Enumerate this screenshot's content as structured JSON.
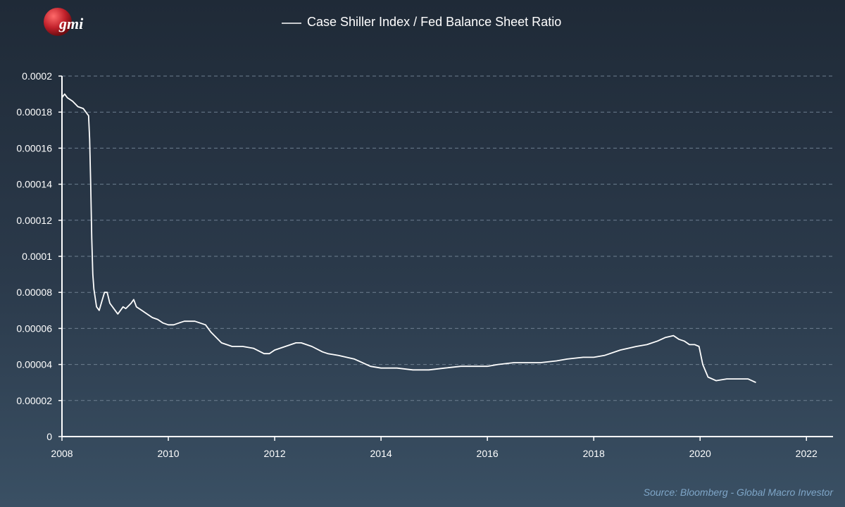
{
  "logo": {
    "text": "gmi",
    "color": "#c0202a"
  },
  "source_note": "Source: Bloomberg - Global Macro Investor",
  "colors": {
    "line": "#ffffff",
    "grid": "#6e7f90",
    "axis": "#ffffff",
    "text": "#ffffff",
    "source": "#7fa6c8"
  },
  "chart_data": {
    "type": "line",
    "title": "",
    "xlabel": "",
    "ylabel": "",
    "grid": true,
    "legend": "top-center",
    "xlim": [
      2008,
      2022.5
    ],
    "ylim": [
      0,
      0.0002
    ],
    "xticks": [
      "2008",
      "2010",
      "2012",
      "2014",
      "2016",
      "2018",
      "2020",
      "2022"
    ],
    "yticks": [
      "0",
      "0.00002",
      "0.00004",
      "0.00006",
      "0.00008",
      "0.0001",
      "0.00012",
      "0.00014",
      "0.00016",
      "0.00018",
      "0.0002"
    ],
    "series": [
      {
        "name": "Case Shiller Index / Fed Balance Sheet Ratio",
        "x": [
          2008.0,
          2008.05,
          2008.1,
          2008.2,
          2008.3,
          2008.4,
          2008.45,
          2008.5,
          2008.52,
          2008.54,
          2008.56,
          2008.58,
          2008.6,
          2008.62,
          2008.65,
          2008.7,
          2008.75,
          2008.8,
          2008.85,
          2008.9,
          2009.0,
          2009.05,
          2009.1,
          2009.15,
          2009.2,
          2009.3,
          2009.35,
          2009.4,
          2009.5,
          2009.6,
          2009.7,
          2009.8,
          2009.9,
          2010.0,
          2010.1,
          2010.2,
          2010.3,
          2010.5,
          2010.7,
          2010.8,
          2011.0,
          2011.2,
          2011.4,
          2011.6,
          2011.8,
          2011.9,
          2012.0,
          2012.2,
          2012.4,
          2012.5,
          2012.7,
          2012.9,
          2013.0,
          2013.2,
          2013.5,
          2013.8,
          2014.0,
          2014.3,
          2014.6,
          2014.9,
          2015.2,
          2015.5,
          2015.8,
          2016.0,
          2016.2,
          2016.5,
          2016.8,
          2017.0,
          2017.3,
          2017.5,
          2017.8,
          2018.0,
          2018.2,
          2018.5,
          2018.8,
          2019.0,
          2019.2,
          2019.35,
          2019.5,
          2019.6,
          2019.7,
          2019.8,
          2019.9,
          2019.98,
          2020.05,
          2020.15,
          2020.3,
          2020.5,
          2020.7,
          2020.9,
          2021.05
        ],
        "values": [
          0.000188,
          0.00019,
          0.000188,
          0.000186,
          0.000183,
          0.000182,
          0.00018,
          0.000178,
          0.000165,
          0.00014,
          0.00011,
          9e-05,
          8.2e-05,
          7.8e-05,
          7.2e-05,
          7e-05,
          7.5e-05,
          8e-05,
          8e-05,
          7.4e-05,
          7e-05,
          6.8e-05,
          7e-05,
          7.2e-05,
          7.1e-05,
          7.4e-05,
          7.6e-05,
          7.2e-05,
          7e-05,
          6.8e-05,
          6.6e-05,
          6.5e-05,
          6.3e-05,
          6.2e-05,
          6.2e-05,
          6.3e-05,
          6.4e-05,
          6.4e-05,
          6.2e-05,
          5.8e-05,
          5.2e-05,
          5e-05,
          5e-05,
          4.9e-05,
          4.6e-05,
          4.6e-05,
          4.8e-05,
          5e-05,
          5.2e-05,
          5.2e-05,
          5e-05,
          4.7e-05,
          4.6e-05,
          4.5e-05,
          4.3e-05,
          3.9e-05,
          3.8e-05,
          3.8e-05,
          3.7e-05,
          3.7e-05,
          3.8e-05,
          3.9e-05,
          3.9e-05,
          3.9e-05,
          4e-05,
          4.1e-05,
          4.1e-05,
          4.1e-05,
          4.2e-05,
          4.3e-05,
          4.4e-05,
          4.4e-05,
          4.5e-05,
          4.8e-05,
          5e-05,
          5.1e-05,
          5.3e-05,
          5.5e-05,
          5.6e-05,
          5.4e-05,
          5.3e-05,
          5.1e-05,
          5.1e-05,
          5e-05,
          4e-05,
          3.3e-05,
          3.1e-05,
          3.2e-05,
          3.2e-05,
          3.2e-05,
          3e-05
        ]
      }
    ]
  }
}
